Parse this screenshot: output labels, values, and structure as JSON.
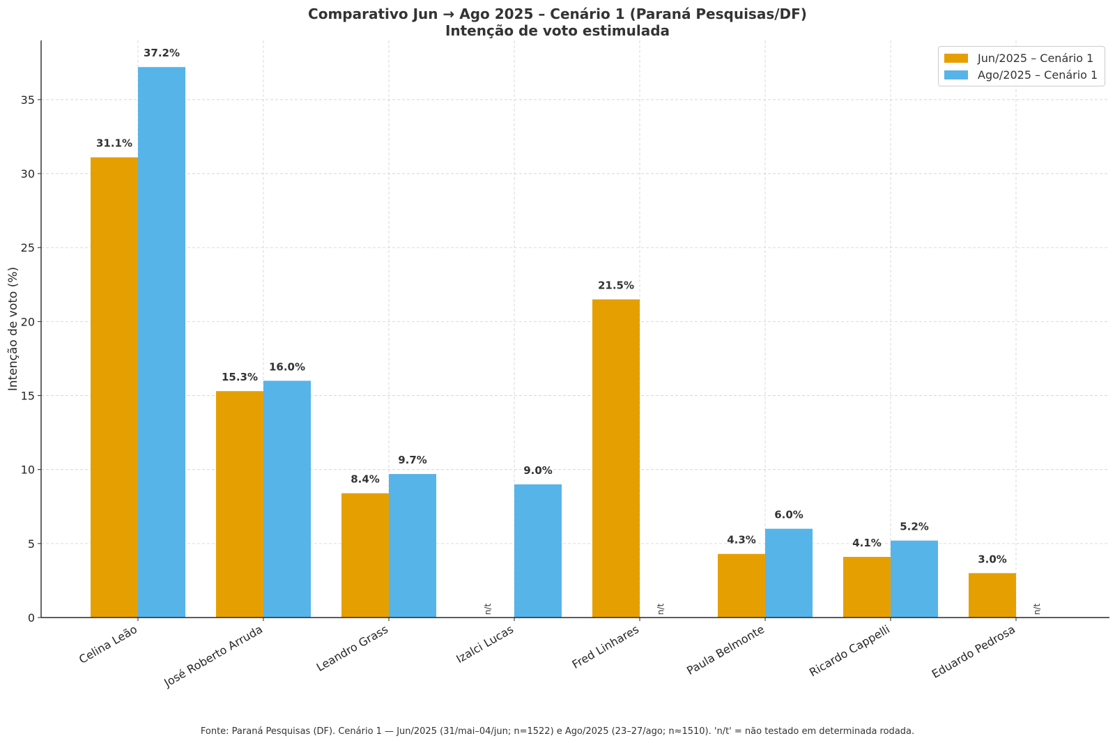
{
  "chart_data": {
    "type": "bar",
    "title": "Comparativo Jun → Ago 2025 – Cenário 1 (Paraná Pesquisas/DF)",
    "subtitle": "Intenção de voto estimulada",
    "xlabel": "",
    "ylabel": "Intenção de voto (%)",
    "ylim": [
      0,
      39
    ],
    "yticks": [
      "0",
      "5",
      "10",
      "15",
      "20",
      "25",
      "30",
      "35"
    ],
    "grid": true,
    "legend_position": "top-right",
    "categories": [
      "Celina Leão",
      "José Roberto Arruda",
      "Leandro Grass",
      "Izalci Lucas",
      "Fred Linhares",
      "Paula Belmonte",
      "Ricardo Cappelli",
      "Eduardo Pedrosa"
    ],
    "series": [
      {
        "name": "Jun/2025 – Cenário 1",
        "color": "#E69F00",
        "values": [
          31.1,
          15.3,
          8.4,
          null,
          21.5,
          4.3,
          4.1,
          3.0
        ],
        "labels": [
          "31.1%",
          "15.3%",
          "8.4%",
          "n/t",
          "21.5%",
          "4.3%",
          "4.1%",
          "3.0%"
        ]
      },
      {
        "name": "Ago/2025 – Cenário 1",
        "color": "#56B4E9",
        "values": [
          37.2,
          16.0,
          9.7,
          9.0,
          null,
          6.0,
          5.2,
          null
        ],
        "labels": [
          "37.2%",
          "16.0%",
          "9.7%",
          "9.0%",
          "n/t",
          "6.0%",
          "5.2%",
          "n/t"
        ]
      }
    ],
    "missing_label": "n/t"
  },
  "footer": "Fonte: Paraná Pesquisas (DF). Cenário 1 — Jun/2025 (31/mai–04/jun; n=1522) e Ago/2025 (23–27/ago; n≈1510). 'n/t' = não testado em determinada rodada."
}
